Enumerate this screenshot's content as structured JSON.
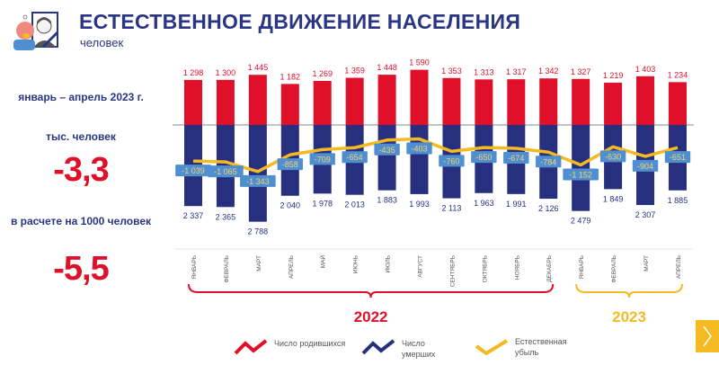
{
  "header": {
    "title": "ЕСТЕСТВЕННОЕ ДВИЖЕНИЕ НАСЕЛЕНИЯ",
    "subtitle": "человек"
  },
  "summary": {
    "period": "январь – апрель 2023 г.",
    "unit_label": "тыс. человек",
    "unit_value": "-3,3",
    "per1000_label": "в расчете на 1000 человек",
    "per1000_value": "-5,5"
  },
  "colors": {
    "births": "#e0102a",
    "deaths": "#27307f",
    "decrease": "#f5b921",
    "title": "#2a3583",
    "label_box": "#4f8fd1"
  },
  "chart_data": {
    "type": "bar",
    "title": "ЕСТЕСТВЕННОЕ ДВИЖЕНИЕ НАСЕЛЕНИЯ",
    "ylabel": "человек",
    "categories": [
      "ЯНВАРЬ",
      "ФЕВРАЛЬ",
      "МАРТ",
      "АПРЕЛЬ",
      "МАЙ",
      "ИЮНЬ",
      "ИЮЛЬ",
      "АВГУСТ",
      "СЕНТЯБРЬ",
      "ОКТЯБРЬ",
      "НОЯБРЬ",
      "ДЕКАБРЬ",
      "ЯНВАРЬ",
      "ФЕВРАЛЬ",
      "МАРТ",
      "АПРЕЛЬ"
    ],
    "groups": [
      {
        "label": "2022",
        "from": 0,
        "to": 11
      },
      {
        "label": "2023",
        "from": 12,
        "to": 15
      }
    ],
    "series": [
      {
        "name": "Число родившихся",
        "type": "bar",
        "values": [
          1298,
          1300,
          1445,
          1182,
          1269,
          1359,
          1448,
          1590,
          1353,
          1313,
          1317,
          1342,
          1327,
          1219,
          1403,
          1234
        ]
      },
      {
        "name": "Число умерших",
        "type": "bar",
        "values": [
          2337,
          2365,
          2788,
          2040,
          1978,
          2013,
          1883,
          1993,
          2113,
          1963,
          1991,
          2126,
          2479,
          1849,
          2307,
          1885
        ]
      },
      {
        "name": "Естественная убыль",
        "type": "line",
        "values": [
          -1039,
          -1065,
          -1343,
          -858,
          -709,
          -654,
          -435,
          -403,
          -760,
          -650,
          -674,
          -784,
          -1152,
          -630,
          -904,
          -651
        ]
      }
    ],
    "legend_position": "bottom"
  }
}
